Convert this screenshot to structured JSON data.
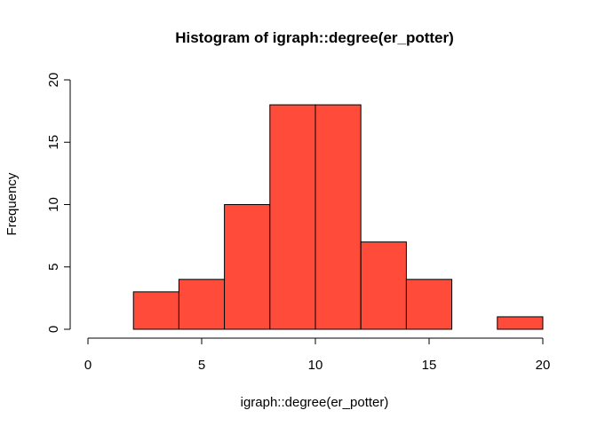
{
  "chart_data": {
    "type": "bar",
    "title": "Histogram of igraph::degree(er_potter)",
    "xlabel": "igraph::degree(er_potter)",
    "ylabel": "Frequency",
    "bins": [
      {
        "x0": 2,
        "x1": 4,
        "count": 3
      },
      {
        "x0": 4,
        "x1": 6,
        "count": 4
      },
      {
        "x0": 6,
        "x1": 8,
        "count": 10
      },
      {
        "x0": 8,
        "x1": 10,
        "count": 18
      },
      {
        "x0": 10,
        "x1": 12,
        "count": 18
      },
      {
        "x0": 12,
        "x1": 14,
        "count": 7
      },
      {
        "x0": 14,
        "x1": 16,
        "count": 4
      },
      {
        "x0": 16,
        "x1": 18,
        "count": 0
      },
      {
        "x0": 18,
        "x1": 20,
        "count": 1
      }
    ],
    "xlim": [
      0,
      20
    ],
    "ylim": [
      0,
      20
    ],
    "xticks": [
      "0",
      "5",
      "10",
      "15",
      "20"
    ],
    "yticks": [
      "0",
      "5",
      "10",
      "15",
      "20"
    ],
    "bar_color": "#FF4B3A",
    "bar_stroke": "#000000",
    "grid": false
  }
}
